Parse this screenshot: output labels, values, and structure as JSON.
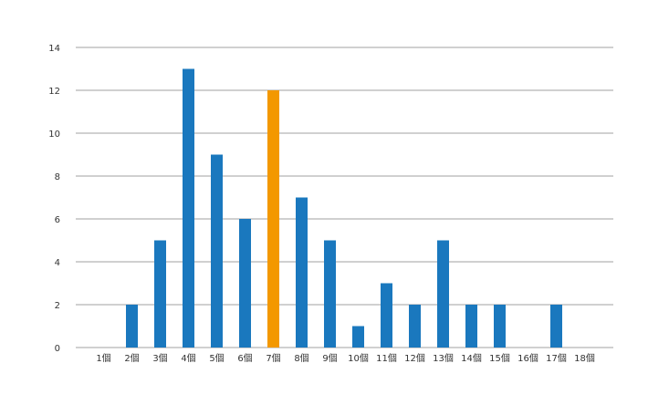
{
  "chart_data": {
    "type": "bar",
    "title": "",
    "xlabel": "",
    "ylabel": "",
    "categories": [
      "1個",
      "2個",
      "3個",
      "4個",
      "5個",
      "6個",
      "7個",
      "8個",
      "9個",
      "10個",
      "11個",
      "12個",
      "13個",
      "14個",
      "15個",
      "16個",
      "17個",
      "18個"
    ],
    "values": [
      0,
      2,
      5,
      13,
      9,
      6,
      12,
      7,
      5,
      1,
      3,
      2,
      5,
      2,
      2,
      0,
      2,
      0
    ],
    "highlight_category": "7個",
    "ylim": [
      0,
      14
    ],
    "yticks": [
      0,
      2,
      4,
      6,
      8,
      10,
      12,
      14
    ],
    "grid": true,
    "legend": "none",
    "colors": {
      "bar": "#1a78be",
      "highlight": "#f39800",
      "grid": "#a0a0a0"
    }
  }
}
